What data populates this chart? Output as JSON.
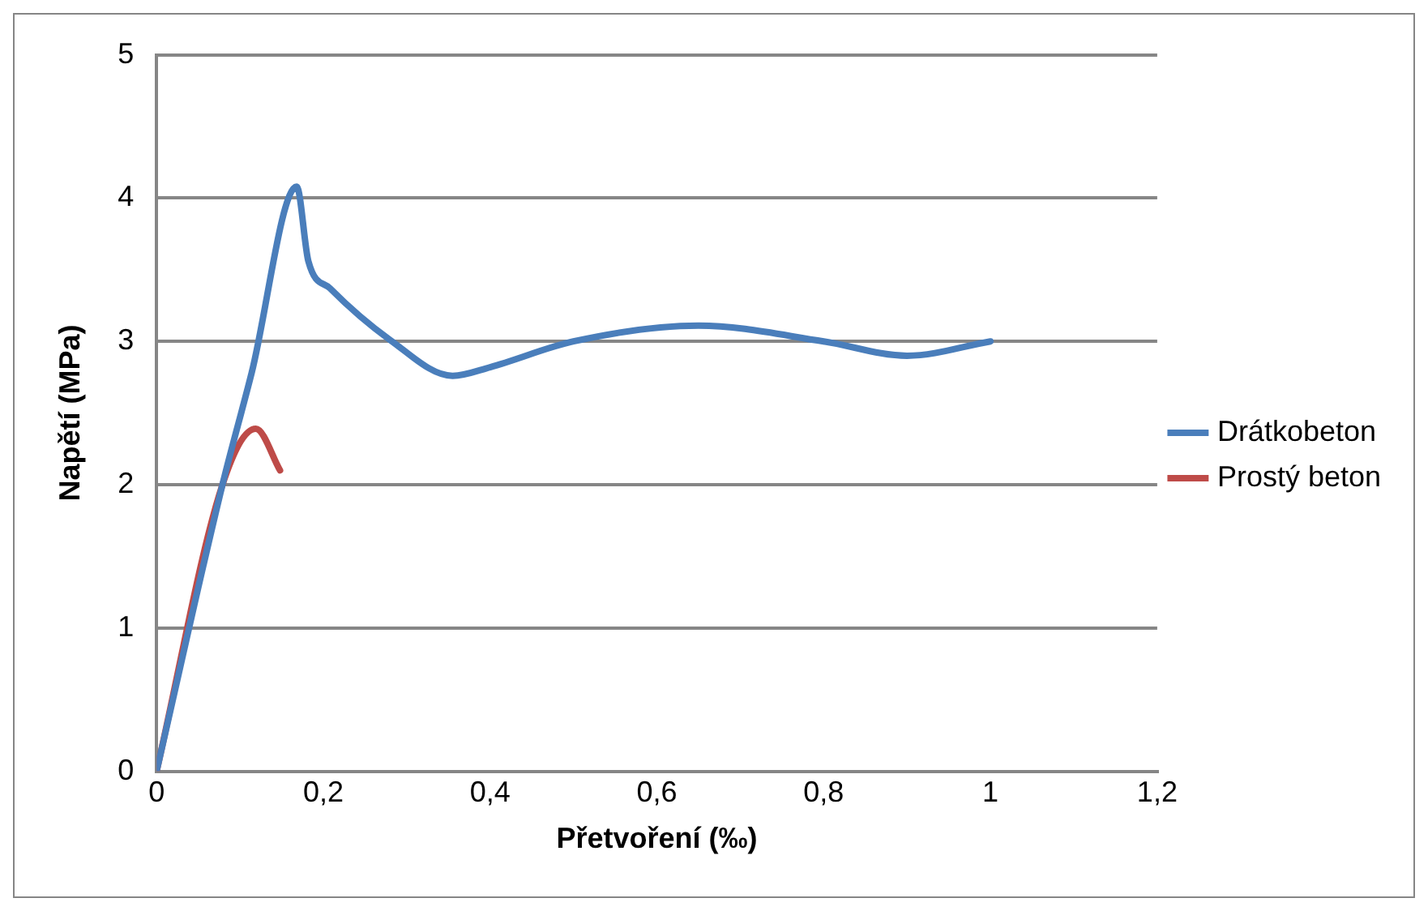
{
  "chart_data": {
    "type": "line",
    "xlabel": "Přetvoření (‰)",
    "ylabel": "Napětí (MPa)",
    "xlim": [
      0,
      1.2
    ],
    "xticks": [
      {
        "value": 0,
        "label": "0"
      },
      {
        "value": 0.2,
        "label": "0,2"
      },
      {
        "value": 0.4,
        "label": "0,4"
      },
      {
        "value": 0.6,
        "label": "0,6"
      },
      {
        "value": 0.8,
        "label": "0,8"
      },
      {
        "value": 1,
        "label": "1"
      },
      {
        "value": 1.2,
        "label": "1,2"
      }
    ],
    "ylim": [
      0,
      5
    ],
    "yticks": [
      0,
      1,
      2,
      3,
      4,
      5
    ],
    "grid": "y",
    "legend": "right",
    "marker": "none",
    "line_style": "solid",
    "series": [
      {
        "name": "Drátkobeton",
        "color": "#4a7ebb",
        "x": [
          0,
          0.079,
          0.114,
          0.168,
          0.182,
          0.208,
          0.28,
          0.355,
          0.4,
          0.5,
          0.65,
          0.8,
          0.9,
          1.0
        ],
        "values": [
          0,
          2.0,
          2.78,
          4.08,
          3.56,
          3.37,
          3.01,
          2.76,
          2.82,
          3.0,
          3.11,
          3.0,
          2.9,
          3.0
        ]
      },
      {
        "name": "Prostý beton",
        "color": "#be4b48",
        "x": [
          0,
          0.079,
          0.119,
          0.148
        ],
        "values": [
          0,
          2.0,
          2.39,
          2.1
        ]
      }
    ]
  }
}
